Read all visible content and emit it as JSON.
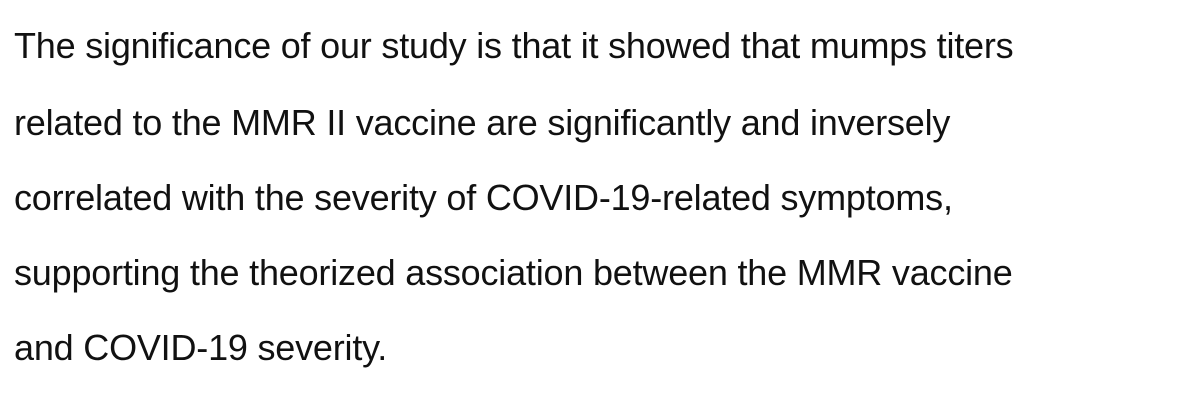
{
  "paragraph": {
    "lines": [
      "The significance of our study is that it showed that mumps titers",
      "related to the MMR II vaccine are significantly and inversely",
      "correlated with the severity of COVID-19-related symptoms,",
      "supporting the theorized association between the MMR vaccine",
      "and COVID-19 severity."
    ]
  }
}
